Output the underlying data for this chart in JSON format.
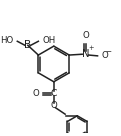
{
  "bg_color": "#ffffff",
  "line_color": "#222222",
  "line_width": 1.1,
  "font_size": 6.2,
  "figsize": [
    1.21,
    1.36
  ],
  "dpi": 100,
  "xlim": [
    -0.55,
    0.85
  ],
  "ylim": [
    -0.85,
    0.75
  ]
}
